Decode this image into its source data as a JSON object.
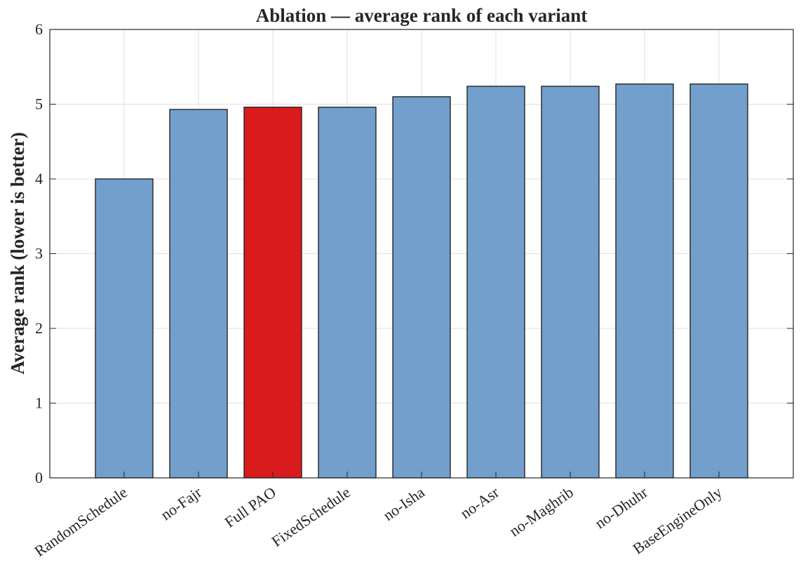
{
  "chart_data": {
    "type": "bar",
    "title": "Ablation — average rank of each variant",
    "xlabel": "",
    "ylabel": "Average rank (lower is better)",
    "ylim": [
      0,
      6
    ],
    "yticks": [
      "0",
      "1",
      "2",
      "3",
      "4",
      "5",
      "6"
    ],
    "grid": true,
    "categories": [
      "RandomSchedule",
      "no-Fajr",
      "Full PAO",
      "FixedSchedule",
      "no-Isha",
      "no-Asr",
      "no-Maghrib",
      "no-Dhuhr",
      "BaseEngineOnly"
    ],
    "values": [
      4.0,
      4.93,
      4.96,
      4.96,
      5.1,
      5.24,
      5.24,
      5.27,
      5.27
    ],
    "highlight_category": "Full PAO",
    "colors": {
      "bar": "#739fcd",
      "highlight": "#d91b1d",
      "edge": "#1a1a1a",
      "grid": "#e0e0e0",
      "axis": "#262626"
    }
  }
}
